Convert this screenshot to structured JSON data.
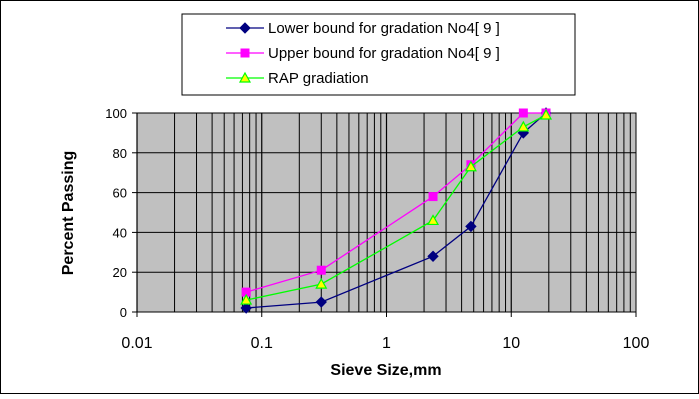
{
  "chart_data": {
    "type": "line",
    "xscale": "log",
    "xlim": [
      0.01,
      100
    ],
    "ylim": [
      0,
      100
    ],
    "xlabel": "Sieve Size,mm",
    "ylabel": "Percent Passing",
    "xticks": [
      "0.01",
      "0.1",
      "1",
      "10",
      "100"
    ],
    "yticks": [
      "0",
      "20",
      "40",
      "60",
      "80",
      "100"
    ],
    "grid": true,
    "legend_position": "top",
    "plot_background": "#c0c0c0",
    "series": [
      {
        "name": "Lower bound for gradation No4[ 9 ]",
        "color": "#000080",
        "marker": "diamond",
        "points": [
          [
            0.075,
            2
          ],
          [
            0.3,
            5
          ],
          [
            2.36,
            28
          ],
          [
            4.75,
            43
          ],
          [
            12.5,
            90
          ],
          [
            19,
            100
          ]
        ]
      },
      {
        "name": "Upper bound for gradation No4[ 9 ]",
        "color": "#ff00ff",
        "marker": "square",
        "points": [
          [
            0.075,
            10
          ],
          [
            0.3,
            21
          ],
          [
            2.36,
            58
          ],
          [
            4.75,
            74
          ],
          [
            12.5,
            100
          ],
          [
            19,
            100
          ]
        ]
      },
      {
        "name": "RAP gradiation",
        "color": "#00ff00",
        "marker": "triangle",
        "points": [
          [
            0.075,
            6
          ],
          [
            0.3,
            14
          ],
          [
            2.36,
            46
          ],
          [
            4.75,
            73
          ],
          [
            12.5,
            93
          ],
          [
            19,
            99
          ]
        ]
      }
    ]
  }
}
